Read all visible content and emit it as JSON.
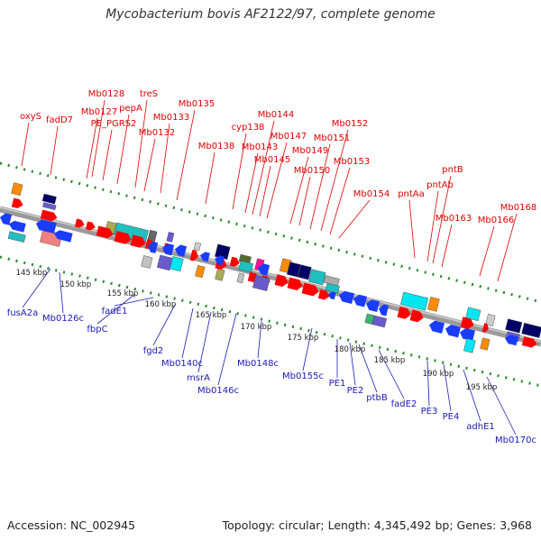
{
  "title": "Mycobacterium bovis AF2122/97, complete genome",
  "footer": {
    "accession": "Accession: NC_002945",
    "summary": "Topology: circular; Length: 4,345,492 bp; Genes: 3,968"
  },
  "colors": {
    "forward_label": "#e00000",
    "reverse_label": "#1a1ab4",
    "backbone": "#8c8c8c",
    "dotted_track": "#2a8a2a"
  },
  "forward_labels": [
    "oxyS",
    "fadD7",
    "Mb0127",
    "Mb0128",
    "PE_PGRS2",
    "pepA",
    "treS",
    "Mb0132",
    "Mb0133",
    "Mb0135",
    "Mb0138",
    "cyp138",
    "Mb0143",
    "Mb0144",
    "Mb0145",
    "Mb0147",
    "Mb0149",
    "Mb0150",
    "Mb0151",
    "Mb0152",
    "Mb0153",
    "Mb0154",
    "pntAa",
    "pntAb",
    "pntB",
    "Mb0163",
    "Mb0166",
    "Mb0168"
  ],
  "reverse_labels": [
    "fusA2a",
    "Mb0126c",
    "fbpC",
    "fadE1",
    "fgd2",
    "Mb0140c",
    "msrA",
    "Mb0146c",
    "Mb0148c",
    "Mb0155c",
    "PE1",
    "PE2",
    "ptbB",
    "fadE2",
    "PE3",
    "PE4",
    "adhE1",
    "Mb0170c"
  ],
  "kbp_ticks": [
    "145 kbp",
    "150 kbp",
    "155 kbp",
    "160 kbp",
    "165 kbp",
    "170 kbp",
    "175 kbp",
    "180 kbp",
    "185 kbp",
    "190 kbp",
    "195 kbp"
  ]
}
